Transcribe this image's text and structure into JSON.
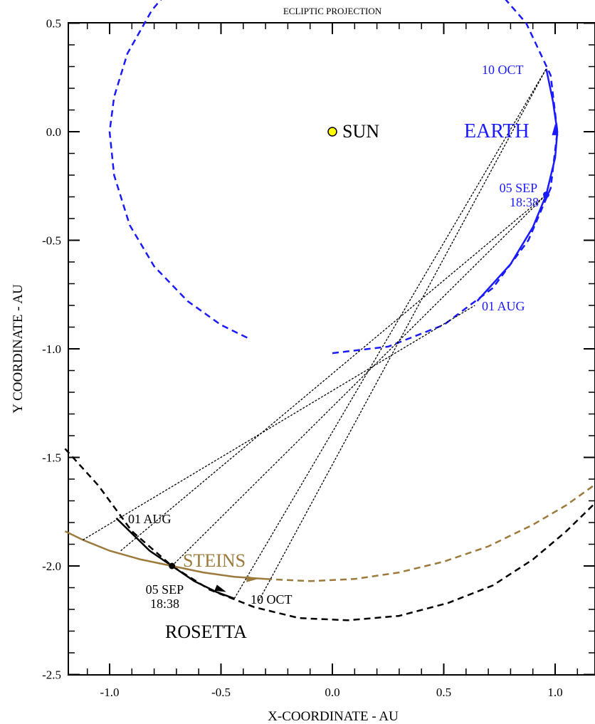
{
  "chart_data": {
    "type": "line",
    "title": "ECLIPTIC PROJECTION",
    "xlabel": "X-COORDINATE - AU",
    "ylabel": "Y COORDINATE - AU",
    "xlim": [
      -1.2,
      1.2
    ],
    "ylim": [
      -2.5,
      0.5
    ],
    "xticks": [
      -1.0,
      -0.5,
      0.0,
      0.5,
      1.0
    ],
    "xtick_labels": [
      "-1.0",
      "-0.5",
      "0.0",
      "0.5",
      "1.0"
    ],
    "yticks": [
      0.5,
      0.0,
      -0.5,
      -1.0,
      -1.5,
      -2.0,
      -2.5
    ],
    "ytick_labels": [
      "0.5",
      "0.0",
      "-0.5",
      "-1.0",
      "-1.5",
      "-2.0",
      "-2.5"
    ],
    "grid": false,
    "colors": {
      "earth": "#1a1aff",
      "rosetta": "#000000",
      "steins": "#9c7a3c",
      "sun": "#ffff00"
    },
    "sun": {
      "label": "SUN",
      "x": 0.0,
      "y": 0.0
    },
    "series": [
      {
        "name": "EARTH",
        "orbit": {
          "x": [
            0.0,
            0.25,
            0.5,
            0.72,
            0.88,
            0.98,
            1.01,
            0.98,
            0.87,
            0.7,
            0.47,
            0.22,
            0.0,
            -0.23,
            -0.46,
            -0.66,
            -0.81,
            -0.92,
            -0.98,
            -1.0,
            -0.98,
            -0.91,
            -0.8,
            -0.65,
            -0.5,
            -0.38
          ],
          "y": [
            -1.02,
            -0.99,
            -0.89,
            -0.72,
            -0.5,
            -0.26,
            0.0,
            0.26,
            0.5,
            0.7,
            0.86,
            0.96,
            1.0,
            0.97,
            0.88,
            0.74,
            0.56,
            0.36,
            0.16,
            0.0,
            -0.2,
            -0.43,
            -0.62,
            -0.78,
            -0.89,
            -0.95
          ]
        },
        "arc": {
          "x": [
            0.65,
            0.8,
            0.9,
            0.96,
            1.0,
            1.01,
            0.99,
            0.96
          ],
          "y": [
            -0.78,
            -0.61,
            -0.44,
            -0.29,
            -0.12,
            0.0,
            0.14,
            0.29
          ]
        },
        "points": [
          {
            "label": "01 AUG",
            "x": 0.64,
            "y": -0.8
          },
          {
            "label": "05 SEP 18:38",
            "x": 0.96,
            "y": -0.29
          },
          {
            "label": "10 OCT",
            "x": 0.96,
            "y": 0.29
          }
        ]
      },
      {
        "name": "ROSETTA",
        "orbit": {
          "x": [
            -1.2,
            -1.05,
            -0.9,
            -0.72,
            -0.55,
            -0.35,
            -0.15,
            0.07,
            0.3,
            0.52,
            0.72,
            0.9,
            1.05,
            1.2
          ],
          "y": [
            -1.46,
            -1.63,
            -1.84,
            -2.0,
            -2.11,
            -2.19,
            -2.24,
            -2.25,
            -2.23,
            -2.17,
            -2.09,
            -1.97,
            -1.84,
            -1.69
          ]
        },
        "arc": {
          "x": [
            -0.97,
            -0.9,
            -0.82,
            -0.72,
            -0.62,
            -0.52,
            -0.44
          ],
          "y": [
            -1.78,
            -1.85,
            -1.93,
            -2.0,
            -2.07,
            -2.12,
            -2.15
          ]
        },
        "points": [
          {
            "label": "01 AUG",
            "x": -0.97,
            "y": -1.78
          },
          {
            "label": "05 SEP 18:38",
            "x": -0.72,
            "y": -2.0
          },
          {
            "label": "10 OCT",
            "x": -0.44,
            "y": -2.15
          }
        ]
      },
      {
        "name": "STEINS",
        "orbit": {
          "x": [
            -0.3,
            -0.1,
            0.1,
            0.3,
            0.5,
            0.7,
            0.9,
            1.05,
            1.2
          ],
          "y": [
            -2.06,
            -2.07,
            -2.06,
            -2.03,
            -1.98,
            -1.91,
            -1.81,
            -1.72,
            -1.61
          ]
        },
        "arc": {
          "x": [
            -1.2,
            -1.12,
            -1.0,
            -0.86,
            -0.72,
            -0.58,
            -0.44,
            -0.3
          ],
          "y": [
            -1.84,
            -1.88,
            -1.93,
            -1.97,
            -2.0,
            -2.03,
            -2.05,
            -2.06
          ]
        },
        "points": [
          {
            "label": "",
            "x": -1.12,
            "y": -1.88
          },
          {
            "label": "",
            "x": -0.72,
            "y": -2.0
          },
          {
            "label": "",
            "x": -0.44,
            "y": -2.05
          }
        ]
      }
    ],
    "sightlines": [
      {
        "x": [
          -1.12,
          0.64
        ],
        "y": [
          -1.88,
          -0.8
        ]
      },
      {
        "x": [
          -0.72,
          0.96
        ],
        "y": [
          -2.0,
          -0.29
        ]
      },
      {
        "x": [
          -0.44,
          0.96
        ],
        "y": [
          -2.15,
          0.29
        ]
      },
      {
        "x": [
          -0.95,
          0.96
        ],
        "y": [
          -1.93,
          -0.29
        ]
      },
      {
        "x": [
          -0.33,
          0.96
        ],
        "y": [
          -2.16,
          0.29
        ]
      }
    ]
  }
}
